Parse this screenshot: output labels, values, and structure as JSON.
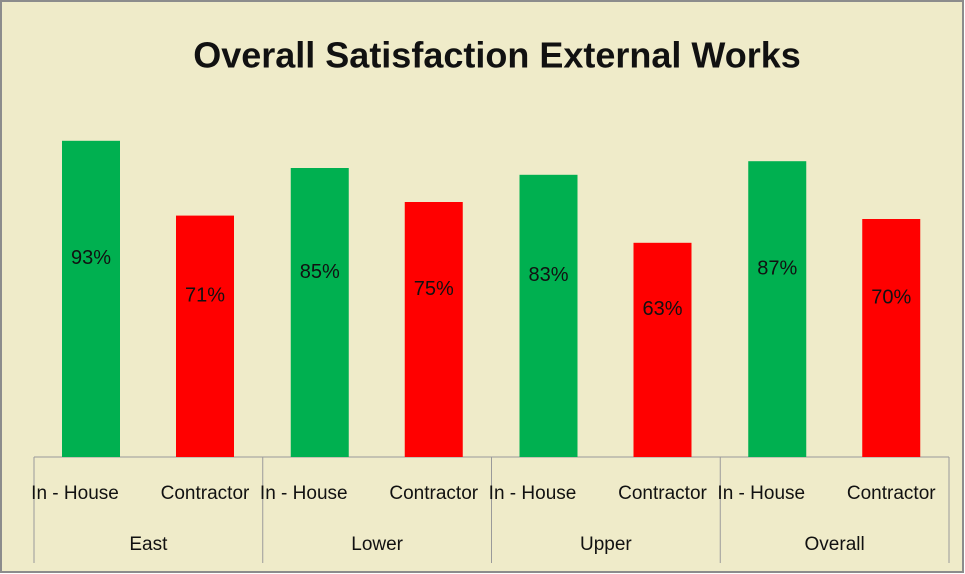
{
  "chart_data": {
    "type": "bar",
    "title": "Overall Satisfaction External Works",
    "categories": [
      "East",
      "Lower",
      "Upper",
      "Overall"
    ],
    "series": [
      {
        "name": "In - House",
        "color": "#00b050",
        "values": [
          93,
          85,
          83,
          87
        ],
        "value_labels": [
          "93%",
          "85%",
          "83%",
          "87%"
        ]
      },
      {
        "name": "Contractor",
        "color": "#ff0000",
        "values": [
          71,
          75,
          63,
          70
        ],
        "value_labels": [
          "71%",
          "75%",
          "63%",
          "70%"
        ]
      }
    ]
  }
}
